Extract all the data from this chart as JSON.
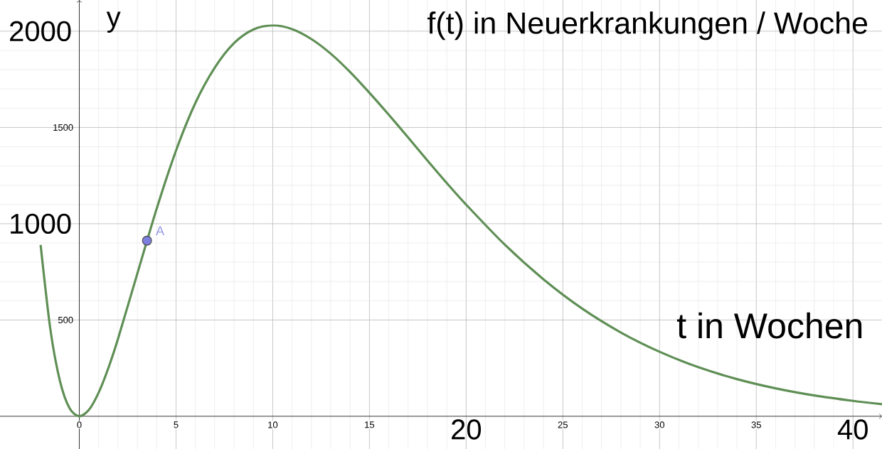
{
  "chart_data": {
    "type": "line",
    "title": "f(t) in Neuerkrankungen / Woche",
    "xlabel": "t in Wochen",
    "ylabel": "y",
    "xlim": [
      -4.1,
      41.5
    ],
    "ylim": [
      -170,
      2162
    ],
    "xticks": [
      0,
      5,
      10,
      15,
      {
        "value": 20,
        "label": null
      },
      25,
      30,
      35,
      {
        "value": 40,
        "label": null
      }
    ],
    "yticks": [
      500,
      {
        "value": 1000,
        "label": null
      },
      1500,
      {
        "value": 2000,
        "label": null
      }
    ],
    "annotations": [
      "20",
      "40",
      "1000",
      "2000"
    ],
    "grid": true,
    "series": [
      {
        "color": "#5f8f55",
        "x": [
          -2,
          -1.5,
          -1,
          -0.5,
          0,
          0.5,
          1,
          1.5,
          2,
          3,
          4,
          5,
          6,
          7,
          8,
          9,
          10,
          11,
          12,
          13,
          14,
          15,
          16,
          17,
          18,
          19,
          20,
          22,
          24,
          26,
          28,
          30,
          32,
          34,
          36,
          38,
          40,
          41.5
        ],
        "values": [
          890,
          455,
          183,
          41,
          0,
          34,
          123,
          250,
          402,
          741,
          1078,
          1380,
          1627,
          1810,
          1938,
          2009,
          2030,
          2011,
          1959,
          1883,
          1788,
          1680,
          1566,
          1448,
          1328,
          1211,
          1099,
          891,
          711,
          559,
          435,
          335,
          255,
          193,
          145,
          108,
          80,
          63
        ]
      },
      {
        "type": "scatter",
        "name": "A",
        "color": "#7b7fe0",
        "x": [
          3.5
        ],
        "values": [
          912
        ]
      }
    ]
  }
}
